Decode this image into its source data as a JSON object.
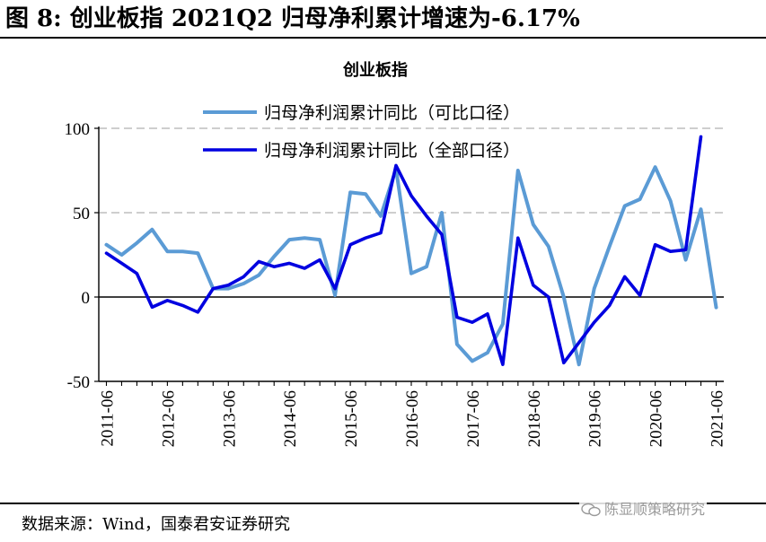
{
  "figure": {
    "title": "图 8: 创业板指 2021Q2 归母净利累计增速为-6.17%",
    "source": "数据来源：Wind，国泰君安证券研究",
    "watermark": "陈显顺策略研究"
  },
  "chart_data": {
    "type": "line",
    "title": "创业板指",
    "xlabel": "",
    "ylabel": "",
    "ylim": [
      -50,
      100
    ],
    "yticks": [
      100,
      50,
      0,
      -50
    ],
    "grid": "horizontal dashed",
    "legend_position": "top",
    "x": [
      "2011-06",
      "2011-09",
      "2011-12",
      "2012-03",
      "2012-06",
      "2012-09",
      "2012-12",
      "2013-03",
      "2013-06",
      "2013-09",
      "2013-12",
      "2014-03",
      "2014-06",
      "2014-09",
      "2014-12",
      "2015-03",
      "2015-06",
      "2015-09",
      "2015-12",
      "2016-03",
      "2016-06",
      "2016-09",
      "2016-12",
      "2017-03",
      "2017-06",
      "2017-09",
      "2017-12",
      "2018-03",
      "2018-06",
      "2018-09",
      "2018-12",
      "2019-03",
      "2019-06",
      "2019-09",
      "2019-12",
      "2020-03",
      "2020-06",
      "2020-09",
      "2020-12",
      "2021-03",
      "2021-06"
    ],
    "xticklabels": [
      "2011-06",
      "2012-06",
      "2013-06",
      "2014-06",
      "2015-06",
      "2016-06",
      "2017-06",
      "2018-06",
      "2019-06",
      "2020-06",
      "2021-06"
    ],
    "series": [
      {
        "name": "归母净利润累计同比（可比口径）",
        "color": "#5b9bd5",
        "values": [
          31,
          25,
          32,
          40,
          27,
          27,
          26,
          5,
          5,
          8,
          13,
          24,
          34,
          35,
          34,
          1,
          62,
          61,
          48,
          76,
          14,
          18,
          50,
          -28,
          -38,
          -33,
          -16,
          75,
          43,
          30,
          0,
          -40,
          5,
          30,
          54,
          58,
          77,
          57,
          22,
          52,
          -6.17
        ]
      },
      {
        "name": "归母净利润累计同比（全部口径）",
        "color": "#0000e0",
        "values": [
          26,
          20,
          14,
          -6,
          -2,
          -5,
          -9,
          5,
          7,
          12,
          21,
          18,
          20,
          17,
          22,
          5,
          31,
          35,
          38,
          78,
          60,
          48,
          37,
          -12,
          -15,
          -10,
          -40,
          35,
          7,
          0,
          -39,
          -27,
          -15,
          -5,
          12,
          1,
          31,
          27,
          28,
          95,
          null
        ]
      }
    ]
  }
}
